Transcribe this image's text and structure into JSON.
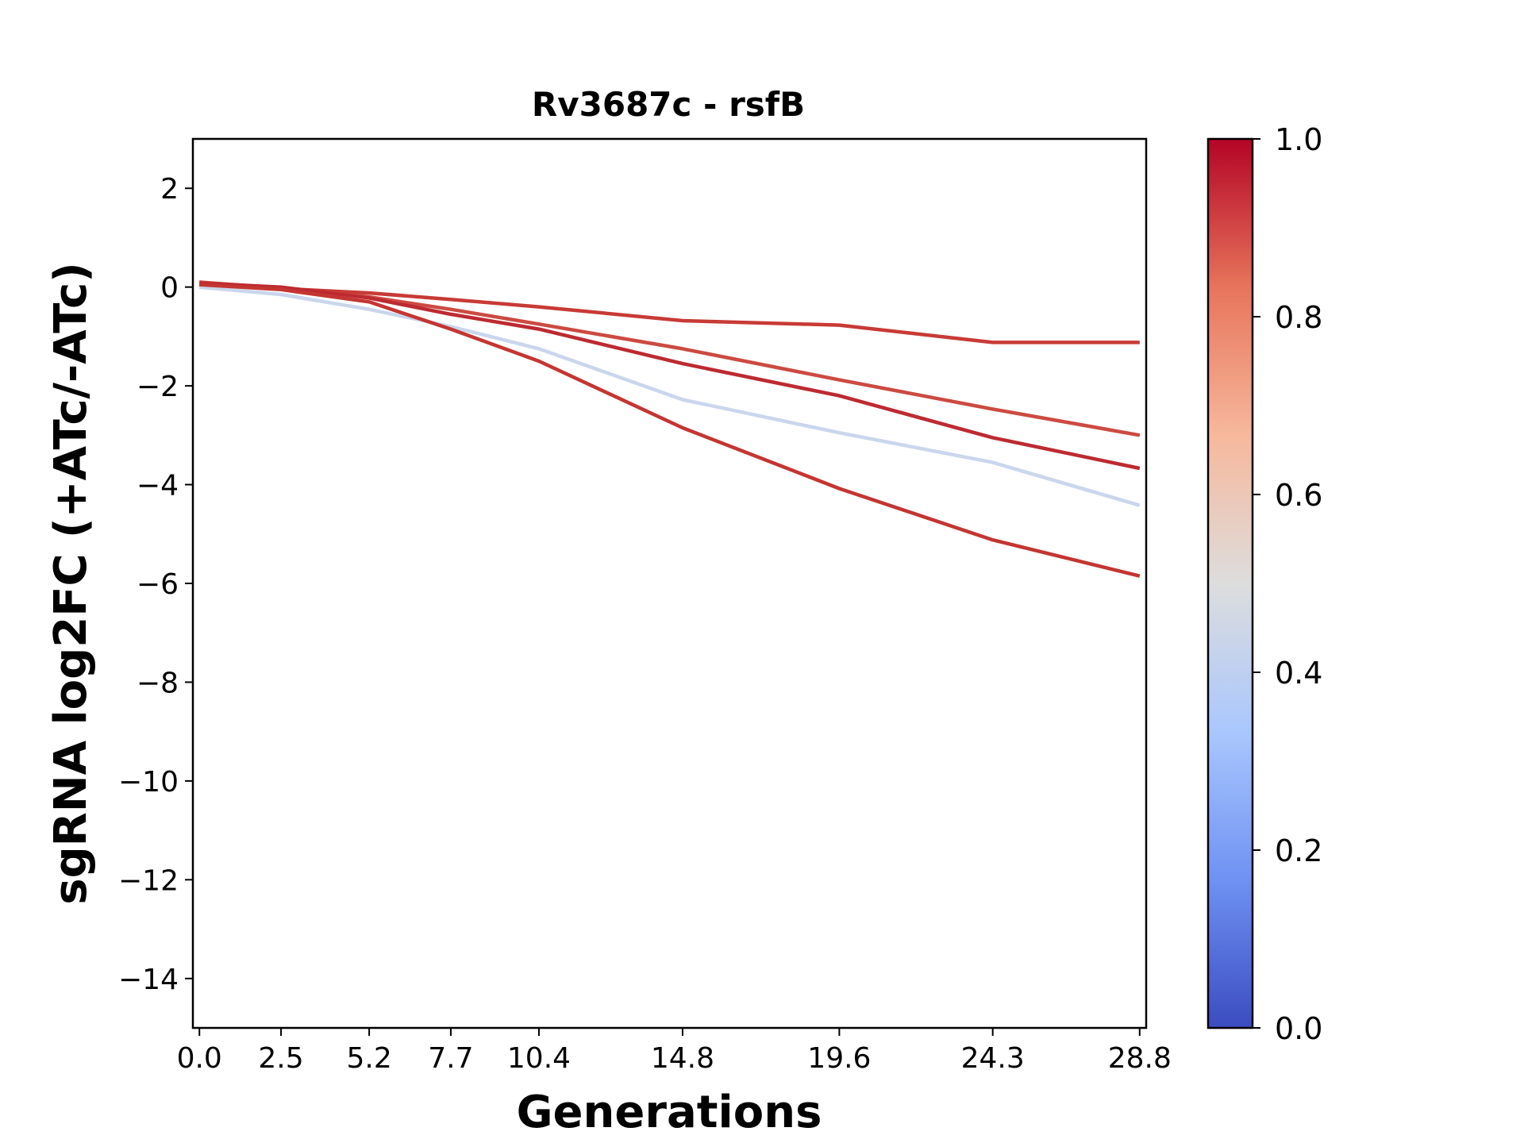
{
  "chart_data": {
    "type": "line",
    "title": "Rv3687c - rsfB",
    "xlabel": "Generations",
    "ylabel": "sgRNA log2FC (+ATc/-ATc)",
    "x": [
      0.0,
      2.5,
      5.2,
      7.7,
      10.4,
      14.8,
      19.6,
      24.3,
      28.8
    ],
    "x_tick_labels": [
      "0.0",
      "2.5",
      "5.2",
      "7.7",
      "10.4",
      "14.8",
      "19.6",
      "24.3",
      "28.8"
    ],
    "y_ticks": [
      2,
      0,
      -2,
      -4,
      -6,
      -8,
      -10,
      -12,
      -14
    ],
    "y_tick_labels": [
      "2",
      "0",
      "−2",
      "−4",
      "−6",
      "−8",
      "−10",
      "−12",
      "−14"
    ],
    "xlim": [
      -0.2,
      29.0
    ],
    "ylim": [
      -15,
      3
    ],
    "grid": false,
    "series": [
      {
        "color_value": 0.92,
        "color": "#c83a36",
        "values": [
          0.05,
          -0.03,
          -0.12,
          -0.25,
          -0.4,
          -0.68,
          -0.77,
          -1.12,
          -1.12
        ]
      },
      {
        "color_value": 0.9,
        "color": "#cc4a42",
        "values": [
          0.1,
          -0.02,
          -0.2,
          -0.45,
          -0.75,
          -1.25,
          -1.88,
          -2.47,
          -3.0
        ]
      },
      {
        "color_value": 0.96,
        "color": "#bd2a31",
        "values": [
          0.08,
          0.0,
          -0.22,
          -0.55,
          -0.85,
          -1.55,
          -2.2,
          -3.05,
          -3.67
        ]
      },
      {
        "color_value": 0.42,
        "color": "#c9d6ec",
        "values": [
          0.0,
          -0.15,
          -0.45,
          -0.8,
          -1.25,
          -2.28,
          -2.95,
          -3.55,
          -4.42
        ]
      },
      {
        "color_value": 0.94,
        "color": "#c43532",
        "values": [
          0.05,
          -0.05,
          -0.3,
          -0.85,
          -1.5,
          -2.85,
          -4.08,
          -5.12,
          -5.85
        ]
      }
    ],
    "colorbar": {
      "colormap": "coolwarm",
      "min": 0.0,
      "max": 1.0,
      "ticks": [
        0.0,
        0.2,
        0.4,
        0.6,
        0.8,
        1.0
      ],
      "tick_labels": [
        "0.0",
        "0.2",
        "0.4",
        "0.6",
        "0.8",
        "1.0"
      ],
      "stops": [
        "#3b4cc0",
        "#6f92f3",
        "#aac7fd",
        "#dddddd",
        "#f7b89c",
        "#e7745b",
        "#b40426"
      ]
    }
  }
}
